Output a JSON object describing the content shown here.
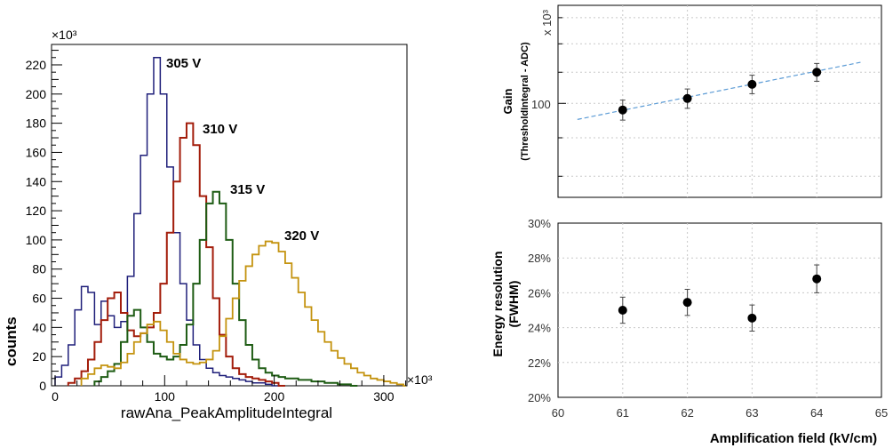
{
  "chart_data": [
    {
      "type": "line",
      "subtype": "step-histogram",
      "title": "",
      "xlabel": "rawAna_PeakAmplitudeIntegral",
      "ylabel": "counts",
      "x_multiplier": "×10³",
      "y_multiplier": "×10³",
      "xlim": [
        0,
        320
      ],
      "ylim": [
        0,
        235
      ],
      "x_ticks": [
        0,
        100,
        200,
        300
      ],
      "y_ticks": [
        0,
        20,
        40,
        60,
        80,
        100,
        120,
        140,
        160,
        180,
        200,
        220
      ],
      "bin_width": 6,
      "series": [
        {
          "name": "305 V",
          "color": "#1f1f7a",
          "x": [
            0,
            6,
            12,
            18,
            24,
            30,
            36,
            42,
            48,
            54,
            60,
            66,
            72,
            78,
            84,
            90,
            96,
            102,
            108,
            114,
            120,
            126,
            132,
            138,
            144,
            150,
            156,
            162,
            168,
            174,
            180,
            186,
            192,
            198
          ],
          "values": [
            6,
            14,
            28,
            52,
            68,
            64,
            42,
            58,
            48,
            40,
            44,
            75,
            118,
            158,
            200,
            225,
            200,
            150,
            105,
            70,
            45,
            28,
            18,
            12,
            9,
            7,
            6,
            5,
            4,
            3,
            2,
            2,
            1,
            0
          ]
        },
        {
          "name": "310 V",
          "color": "#a31d0b",
          "x": [
            12,
            18,
            24,
            30,
            36,
            42,
            48,
            54,
            60,
            66,
            72,
            78,
            84,
            90,
            96,
            102,
            108,
            114,
            120,
            126,
            132,
            138,
            144,
            150,
            156,
            162,
            168,
            174,
            180,
            186,
            192,
            198,
            204
          ],
          "values": [
            2,
            5,
            10,
            18,
            30,
            45,
            60,
            64,
            50,
            38,
            34,
            36,
            40,
            50,
            70,
            105,
            140,
            170,
            180,
            165,
            130,
            95,
            60,
            35,
            20,
            12,
            8,
            6,
            5,
            4,
            3,
            2,
            0
          ]
        },
        {
          "name": "315 V",
          "color": "#1e5c14",
          "x": [
            36,
            42,
            48,
            54,
            60,
            66,
            72,
            78,
            84,
            90,
            96,
            102,
            108,
            114,
            120,
            126,
            132,
            138,
            144,
            150,
            156,
            162,
            168,
            174,
            180,
            186,
            192,
            198,
            204,
            210,
            216,
            222,
            228,
            234,
            240,
            246,
            252,
            258,
            264,
            270
          ],
          "values": [
            3,
            6,
            10,
            15,
            30,
            48,
            52,
            40,
            30,
            22,
            20,
            18,
            20,
            28,
            42,
            70,
            100,
            125,
            133,
            125,
            100,
            70,
            45,
            28,
            18,
            12,
            9,
            7,
            6,
            5,
            5,
            4,
            4,
            3,
            3,
            2,
            2,
            1,
            1,
            0
          ]
        },
        {
          "name": "320 V",
          "color": "#c4930f",
          "x": [
            24,
            30,
            36,
            42,
            48,
            54,
            60,
            66,
            72,
            78,
            84,
            90,
            96,
            102,
            108,
            114,
            120,
            126,
            132,
            138,
            144,
            150,
            156,
            162,
            168,
            174,
            180,
            186,
            192,
            198,
            204,
            210,
            216,
            222,
            228,
            234,
            240,
            246,
            252,
            258,
            264,
            270,
            276,
            282,
            288,
            294,
            300,
            306,
            312,
            318
          ],
          "values": [
            5,
            8,
            12,
            14,
            13,
            12,
            16,
            22,
            30,
            36,
            42,
            44,
            38,
            30,
            22,
            18,
            16,
            15,
            16,
            18,
            24,
            34,
            46,
            60,
            72,
            82,
            90,
            96,
            99,
            98,
            92,
            84,
            74,
            64,
            54,
            45,
            37,
            30,
            24,
            19,
            15,
            12,
            9,
            7,
            5,
            4,
            3,
            2,
            1,
            0
          ]
        }
      ],
      "annotations": [
        "305 V",
        "310 V",
        "315 V",
        "320 V"
      ]
    },
    {
      "type": "scatter",
      "title": "",
      "xlabel": "",
      "ylabel": "Gain",
      "ylabel_sub": "(ThresholdIntegral - ADC)",
      "y_multiplier": "x 10³",
      "yscale": "log",
      "xlim": [
        60,
        65
      ],
      "ylim": [
        75,
        135
      ],
      "y_tick_labels": [
        "100"
      ],
      "grid": true,
      "points": [
        {
          "x": 61,
          "y": 98,
          "err": 3
        },
        {
          "x": 62,
          "y": 101.5,
          "err": 3
        },
        {
          "x": 63,
          "y": 106,
          "err": 3
        },
        {
          "x": 64,
          "y": 110,
          "err": 3
        }
      ],
      "fit": {
        "x": [
          60.3,
          64.7
        ],
        "y": [
          95.2,
          113.5
        ],
        "color": "#5b9bd5",
        "style": "dashed"
      }
    },
    {
      "type": "scatter",
      "title": "",
      "xlabel": "Amplification field (kV/cm)",
      "ylabel": "Energy resolution",
      "ylabel_sub": "(FWHM)",
      "xlim": [
        60,
        65
      ],
      "ylim": [
        20,
        30
      ],
      "x_ticks": [
        "60",
        "61",
        "62",
        "63",
        "64",
        "65"
      ],
      "y_ticks": [
        "20%",
        "22%",
        "24%",
        "26%",
        "28%",
        "30%"
      ],
      "grid": true,
      "points": [
        {
          "x": 61,
          "y": 25.0,
          "err": 0.75
        },
        {
          "x": 62,
          "y": 25.45,
          "err": 0.75
        },
        {
          "x": 63,
          "y": 24.55,
          "err": 0.75
        },
        {
          "x": 64,
          "y": 26.8,
          "err": 0.8
        }
      ]
    }
  ]
}
